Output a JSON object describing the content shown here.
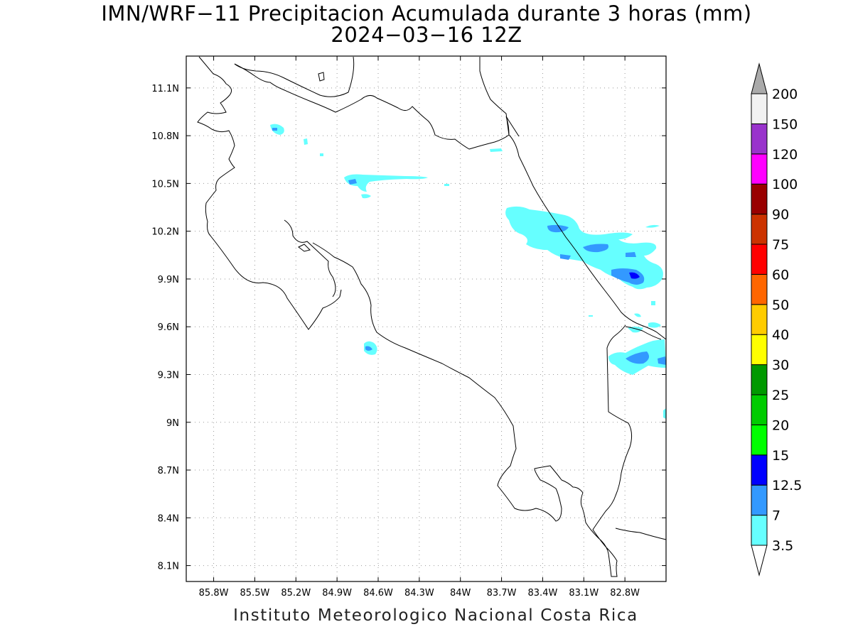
{
  "title": {
    "line1": "IMN/WRF−11 Precipitacion Acumulada durante 3 horas (mm)",
    "line2": "2024−03−16 12Z"
  },
  "footer": "Instituto Meteorologico Nacional Costa Rica",
  "map": {
    "lon_range": [
      -86.0,
      -82.5
    ],
    "lat_range": [
      8.0,
      11.3
    ],
    "lon_ticks": [
      "85.8W",
      "85.5W",
      "85.2W",
      "84.9W",
      "84.6W",
      "84.3W",
      "84W",
      "83.7W",
      "83.4W",
      "83.1W",
      "82.8W"
    ],
    "lat_ticks": [
      "8.1N",
      "8.4N",
      "8.7N",
      "9N",
      "9.3N",
      "9.6N",
      "9.9N",
      "10.2N",
      "10.5N",
      "10.8N",
      "11.1N"
    ],
    "grid": "dotted",
    "background": "#ffffff",
    "coastline_color": "#000000"
  },
  "legend": {
    "labels": [
      "3.5",
      "7",
      "12.5",
      "15",
      "20",
      "25",
      "30",
      "40",
      "50",
      "60",
      "75",
      "90",
      "100",
      "120",
      "150",
      "200"
    ],
    "colors": [
      "#ffffff",
      "#66ffff",
      "#3399ff",
      "#0000ff",
      "#00ff00",
      "#00cc00",
      "#009900",
      "#ffff00",
      "#ffcc00",
      "#ff6600",
      "#ff0000",
      "#cc3300",
      "#990000",
      "#ff00ff",
      "#9933cc",
      "#f2f2f2"
    ],
    "top_cap_color": "#aaaaaa",
    "bottom_cap_color": "#ffffff"
  },
  "precip_colors": {
    "light": "#66ffff",
    "medium": "#3399ff",
    "heavy": "#0000ff"
  }
}
